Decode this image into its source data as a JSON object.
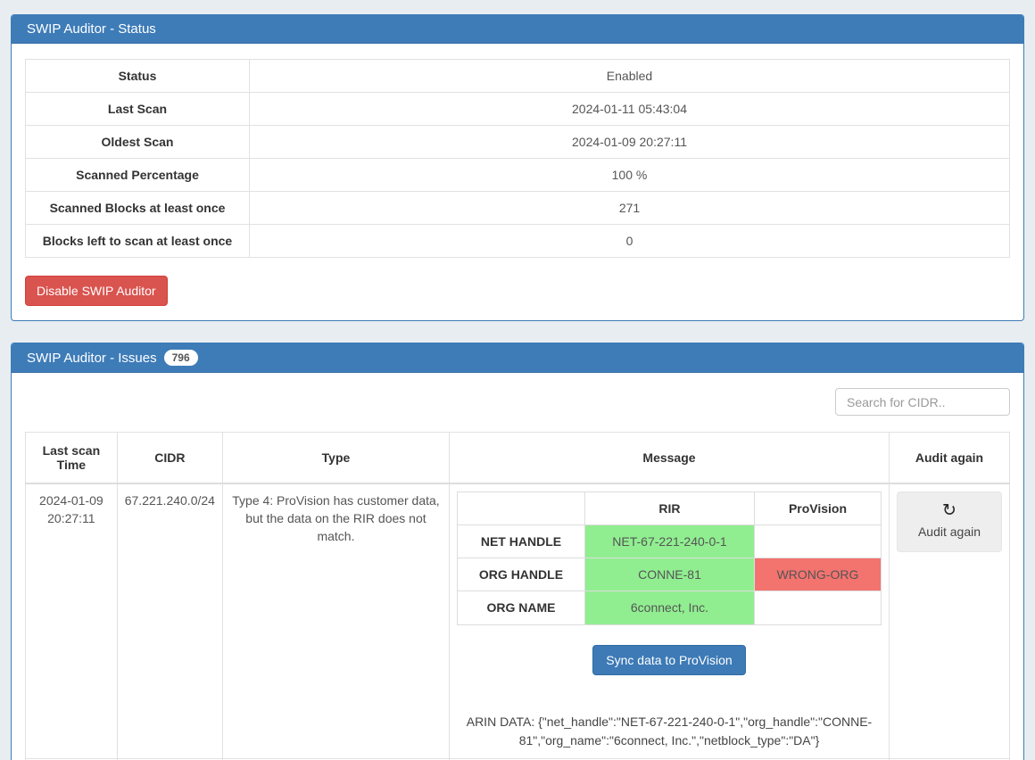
{
  "status_panel": {
    "title": "SWIP Auditor - Status",
    "rows": [
      {
        "label": "Status",
        "value": "Enabled"
      },
      {
        "label": "Last Scan",
        "value": "2024-01-11 05:43:04"
      },
      {
        "label": "Oldest Scan",
        "value": "2024-01-09 20:27:11"
      },
      {
        "label": "Scanned Percentage",
        "value": "100 %"
      },
      {
        "label": "Scanned Blocks at least once",
        "value": "271"
      },
      {
        "label": "Blocks left to scan at least once",
        "value": "0"
      }
    ],
    "disable_button_label": "Disable SWIP Auditor"
  },
  "issues_panel": {
    "title": "SWIP Auditor - Issues",
    "badge_count": "796",
    "search_placeholder": "Search for CIDR..",
    "table": {
      "headers": [
        "Last scan Time",
        "CIDR",
        "Type",
        "Message",
        "Audit again"
      ],
      "row": {
        "last_scan_time": "2024-01-09 20:27:11",
        "cidr": "67.221.240.0/24",
        "type": "Type 4: ProVision has customer data, but the data on the RIR does not match.",
        "message": {
          "comparison": {
            "col_headers": [
              "RIR",
              "ProVision"
            ],
            "rows": [
              {
                "label": "NET HANDLE",
                "rir": "NET-67-221-240-0-1",
                "provision": ""
              },
              {
                "label": "ORG HANDLE",
                "rir": "CONNE-81",
                "provision": "WRONG-ORG"
              },
              {
                "label": "ORG NAME",
                "rir": "6connect, Inc.",
                "provision": ""
              }
            ]
          },
          "sync_button_label": "Sync data to ProVision",
          "arin_data": "ARIN DATA: {\"net_handle\":\"NET-67-221-240-0-1\",\"org_handle\":\"CONNE-81\",\"org_name\":\"6connect, Inc.\",\"netblock_type\":\"DA\"}"
        },
        "audit_again_label": "Audit again"
      }
    }
  },
  "icons": {
    "refresh_glyph": "↻"
  },
  "colors": {
    "panel_header_blue": "#3e7cb8",
    "match_green": "#90ee90",
    "mismatch_red": "#f3736f",
    "danger_red": "#d9534f",
    "primary_blue": "#3d7ab6",
    "page_background": "#e8edf2"
  }
}
